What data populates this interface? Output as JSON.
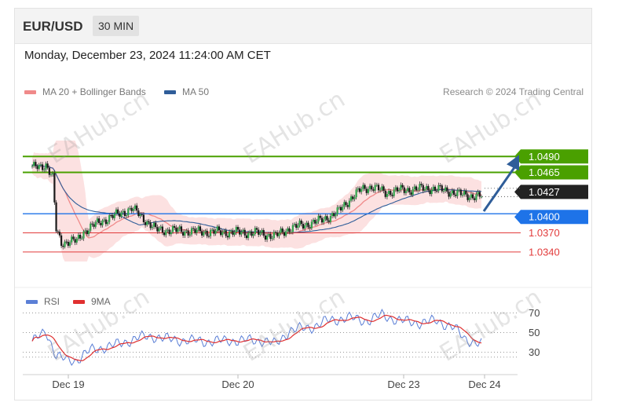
{
  "header": {
    "symbol": "EUR/USD",
    "timeframe": "30 MIN"
  },
  "timestamp": "Monday, December 23, 2024 11:24:00 AM CET",
  "legend": [
    {
      "label": "MA 20 + Bollinger Bands",
      "color": "#f08a8a"
    },
    {
      "label": "MA 50",
      "color": "#2f5d99"
    }
  ],
  "copyright": "Research © 2024 Trading Central",
  "watermark": "EAHub.cn",
  "chart_data": [
    {
      "type": "candlestick",
      "title": "EUR/USD",
      "x_ticks": [
        "Dec 19",
        "Dec 20",
        "Dec 23",
        "Dec 24"
      ],
      "ylim": [
        1.0325,
        1.0515
      ],
      "price_labels": [
        {
          "label": "1.0490",
          "value": 1.049,
          "kind": "resistance",
          "color": "#4aa000"
        },
        {
          "label": "1.0465",
          "value": 1.0465,
          "kind": "resistance",
          "color": "#4aa000"
        },
        {
          "label": "1.0427",
          "value": 1.0427,
          "kind": "last",
          "color": "#222222"
        },
        {
          "label": "1.0400",
          "value": 1.04,
          "kind": "pivot",
          "color": "#1e73e8"
        },
        {
          "label": "1.0370",
          "value": 1.037,
          "kind": "support",
          "color": "#e23b3b"
        },
        {
          "label": "1.0340",
          "value": 1.034,
          "kind": "support",
          "color": "#e23b3b"
        }
      ],
      "target_arrow": {
        "from": 1.0404,
        "to": 1.049
      }
    },
    {
      "type": "line",
      "series": [
        {
          "name": "RSI",
          "color": "#5b7fd6"
        },
        {
          "name": "9MA",
          "color": "#e03030"
        }
      ],
      "y_ticks": [
        "70",
        "50",
        "30"
      ],
      "ylim": [
        20,
        80
      ]
    }
  ]
}
